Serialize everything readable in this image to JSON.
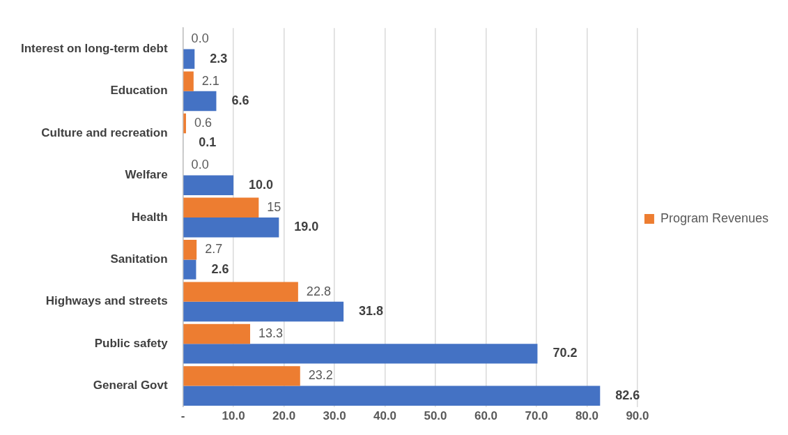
{
  "chart_data": {
    "type": "bar",
    "orientation": "horizontal",
    "categories": [
      "Interest on long-term debt",
      "Education",
      "Culture and recreation",
      "Welfare",
      "Health",
      "Sanitation",
      "Highways and streets",
      "Public safety",
      "General Govt"
    ],
    "series": [
      {
        "name": "Program Revenues",
        "color": "#ed7d31",
        "values": [
          0.0,
          2.1,
          0.6,
          0.0,
          15,
          2.7,
          22.8,
          13.3,
          23.2
        ],
        "value_labels": [
          "0.0",
          "2.1",
          "0.6",
          "0.0",
          "15",
          "2.7",
          "22.8",
          "13.3",
          "23.2"
        ]
      },
      {
        "color": "#4472c4",
        "values": [
          2.3,
          6.6,
          0.1,
          10.0,
          19.0,
          2.6,
          31.8,
          70.2,
          82.6
        ],
        "value_labels": [
          "2.3",
          "6.6",
          "0.1",
          "10.0",
          "19.0",
          "2.6",
          "31.8",
          "70.2",
          "82.6"
        ]
      }
    ],
    "xlim": [
      0,
      90
    ],
    "xticks": [
      {
        "value": 0,
        "label": "-"
      },
      {
        "value": 10,
        "label": "10.0"
      },
      {
        "value": 20,
        "label": "20.0"
      },
      {
        "value": 30,
        "label": "30.0"
      },
      {
        "value": 40,
        "label": "40.0"
      },
      {
        "value": 50,
        "label": "50.0"
      },
      {
        "value": 60,
        "label": "60.0"
      },
      {
        "value": 70,
        "label": "70.0"
      },
      {
        "value": 80,
        "label": "80.0"
      },
      {
        "value": 90,
        "label": "90.0"
      }
    ],
    "grid": "x",
    "legend": "right"
  }
}
